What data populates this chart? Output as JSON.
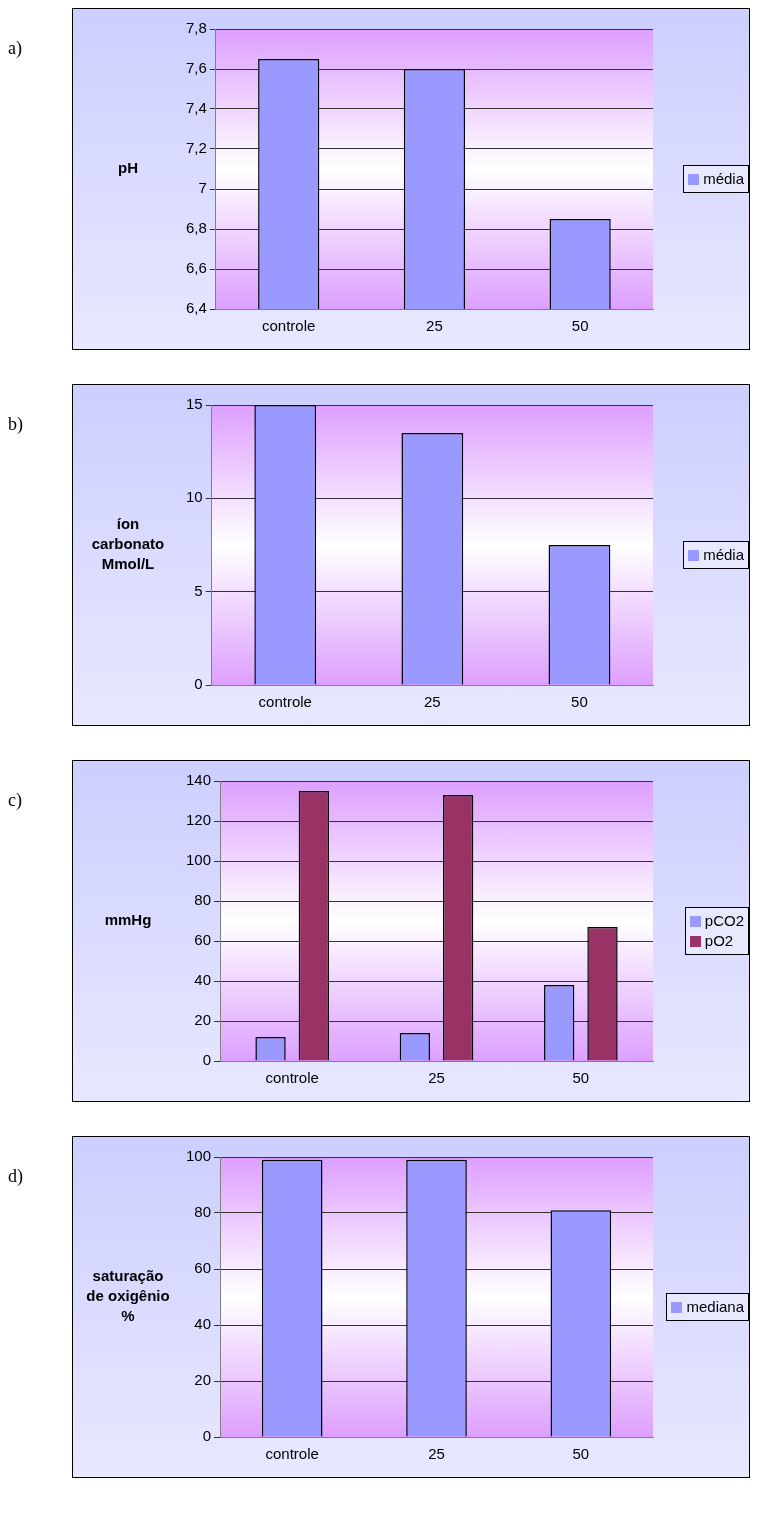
{
  "chart_data": [
    {
      "type": "bar",
      "annotations": [
        "a)"
      ],
      "ylabel": "pH",
      "categories": [
        "controle",
        "25",
        "50"
      ],
      "series": [
        {
          "name": "média",
          "color": "#9999ff",
          "values": [
            7.65,
            7.6,
            6.85
          ]
        }
      ],
      "ylim": [
        6.4,
        7.8
      ],
      "yticks": [
        {
          "value": 6.4,
          "label": "6,4"
        },
        {
          "value": 6.6,
          "label": "6,6"
        },
        {
          "value": 6.8,
          "label": "6,8"
        },
        {
          "value": 7,
          "label": "7"
        },
        {
          "value": 7.2,
          "label": "7,2"
        },
        {
          "value": 7.4,
          "label": "7,4"
        },
        {
          "value": 7.6,
          "label": "7,6"
        },
        {
          "value": 7.8,
          "label": "7,8"
        }
      ],
      "grid": "y",
      "legend": "right"
    },
    {
      "type": "bar",
      "annotations": [
        "b)"
      ],
      "ylabel": "íon carbonato Mmol/L",
      "categories": [
        "controle",
        "25",
        "50"
      ],
      "series": [
        {
          "name": "média",
          "color": "#9999ff",
          "values": [
            15,
            13.5,
            7.5
          ]
        }
      ],
      "ylim": [
        0,
        15
      ],
      "yticks": [
        0,
        5,
        10,
        15
      ],
      "grid": "y",
      "legend": "right"
    },
    {
      "type": "bar",
      "annotations": [
        "c)"
      ],
      "ylabel": "mmHg",
      "categories": [
        "controle",
        "25",
        "50"
      ],
      "series": [
        {
          "name": "pCO2",
          "color": "#9999ff",
          "values": [
            12,
            14,
            38
          ]
        },
        {
          "name": "pO2",
          "color": "#993366",
          "values": [
            135,
            133,
            67
          ]
        }
      ],
      "ylim": [
        0,
        140
      ],
      "yticks": [
        0,
        20,
        40,
        60,
        80,
        100,
        120,
        140
      ],
      "grid": "y",
      "legend": "right"
    },
    {
      "type": "bar",
      "annotations": [
        "d)"
      ],
      "ylabel": "saturação de oxigênio %",
      "categories": [
        "controle",
        "25",
        "50"
      ],
      "series": [
        {
          "name": "mediana",
          "color": "#9999ff",
          "values": [
            99,
            99,
            81
          ]
        }
      ],
      "ylim": [
        0,
        100
      ],
      "yticks": [
        0,
        20,
        40,
        60,
        80,
        100
      ],
      "grid": "y",
      "legend": "right"
    }
  ]
}
